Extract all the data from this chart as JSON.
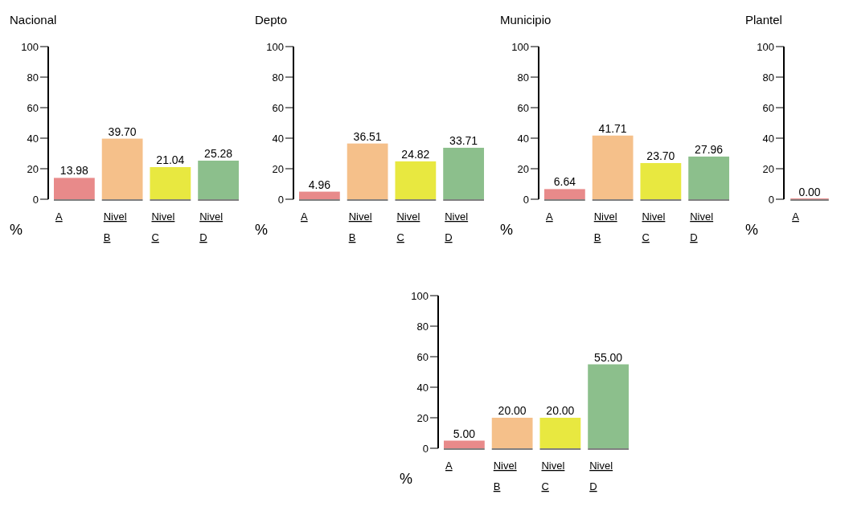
{
  "chart_data": [
    {
      "type": "bar",
      "title": "Nacional",
      "ylabel": "%",
      "categories": [
        "A",
        "Nivel B",
        "Nivel C",
        "Nivel D"
      ],
      "values": [
        13.98,
        39.7,
        21.04,
        25.28
      ],
      "value_labels": [
        "13.98",
        "39.70",
        "21.04",
        "25.28"
      ],
      "colors": [
        "#e88a8a",
        "#f5c08a",
        "#e8e840",
        "#8cbf8c"
      ],
      "ylim": [
        0,
        100
      ],
      "yticks": [
        0,
        20,
        40,
        60,
        80,
        100
      ]
    },
    {
      "type": "bar",
      "title": "Depto",
      "ylabel": "%",
      "categories": [
        "A",
        "Nivel B",
        "Nivel C",
        "Nivel D"
      ],
      "values": [
        4.96,
        36.51,
        24.82,
        33.71
      ],
      "value_labels": [
        "4.96",
        "36.51",
        "24.82",
        "33.71"
      ],
      "colors": [
        "#e88a8a",
        "#f5c08a",
        "#e8e840",
        "#8cbf8c"
      ],
      "ylim": [
        0,
        100
      ],
      "yticks": [
        0,
        20,
        40,
        60,
        80,
        100
      ]
    },
    {
      "type": "bar",
      "title": "Municipio",
      "ylabel": "%",
      "categories": [
        "A",
        "Nivel B",
        "Nivel C",
        "Nivel D"
      ],
      "values": [
        6.64,
        41.71,
        23.7,
        27.96
      ],
      "value_labels": [
        "6.64",
        "41.71",
        "23.70",
        "27.96"
      ],
      "colors": [
        "#e88a8a",
        "#f5c08a",
        "#e8e840",
        "#8cbf8c"
      ],
      "ylim": [
        0,
        100
      ],
      "yticks": [
        0,
        20,
        40,
        60,
        80,
        100
      ]
    },
    {
      "type": "bar",
      "title": "Plantel",
      "ylabel": "%",
      "categories": [
        "A"
      ],
      "values": [
        0
      ],
      "value_labels": [
        "0.00"
      ],
      "colors": [
        "#e88a8a"
      ],
      "ylim": [
        0,
        100
      ],
      "yticks": [
        0,
        20,
        40,
        60,
        80,
        100
      ]
    },
    {
      "type": "bar",
      "ylabel": "%",
      "categories": [
        "A",
        "Nivel B",
        "Nivel C",
        "Nivel D"
      ],
      "values": [
        5,
        20,
        20,
        55
      ],
      "value_labels": [
        "5.00",
        "20.00",
        "20.00",
        "55.00"
      ],
      "colors": [
        "#e88a8a",
        "#f5c08a",
        "#e8e840",
        "#8cbf8c"
      ],
      "ylim": [
        0,
        100
      ],
      "yticks": [
        0,
        20,
        40,
        60,
        80,
        100
      ]
    }
  ]
}
